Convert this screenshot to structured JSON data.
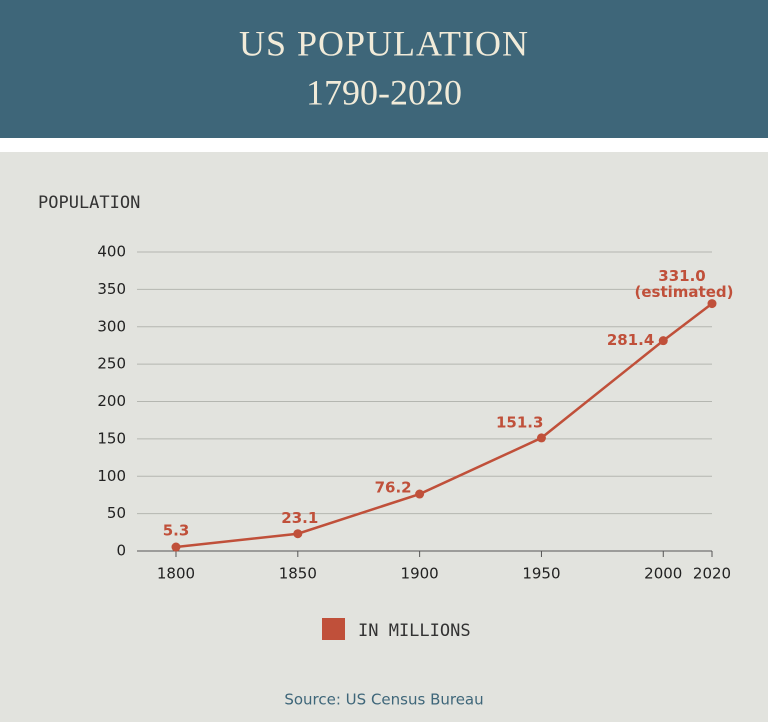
{
  "chart_data": {
    "type": "line",
    "title": "US POPULATION",
    "subtitle": "1790-2020",
    "ylabel": "POPULATION",
    "x": [
      1800,
      1850,
      1900,
      1950,
      2000,
      2020
    ],
    "series": [
      {
        "name": "IN MILLIONS",
        "color": "#c0503a",
        "values": [
          5.3,
          23.1,
          76.2,
          151.3,
          281.4,
          331.0
        ],
        "value_labels": [
          "5.3",
          "23.1",
          "76.2",
          "151.3",
          "281.4",
          "331.0"
        ]
      }
    ],
    "annotation": "(estimated)",
    "xlim": [
      1784,
      2020
    ],
    "xticks": [
      1800,
      1850,
      1900,
      1950,
      2000,
      2020
    ],
    "ylim": [
      0,
      400
    ],
    "yticks": [
      0,
      50,
      100,
      150,
      200,
      250,
      300,
      350,
      400
    ],
    "grid": true,
    "source": "Source: US Census Bureau"
  }
}
